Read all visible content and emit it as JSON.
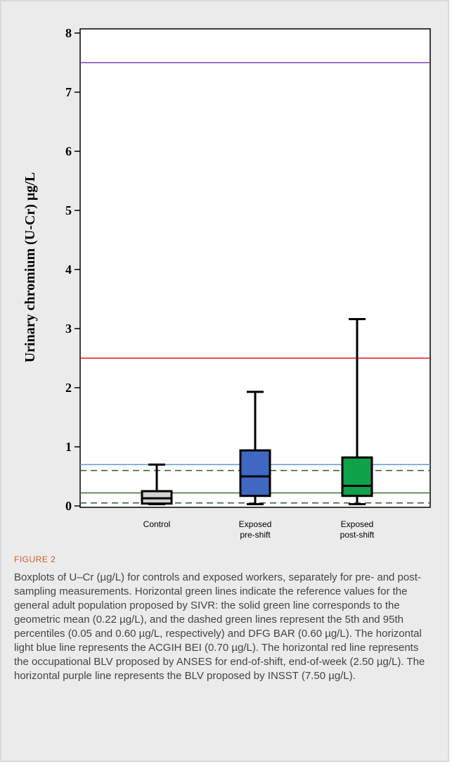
{
  "chart_data": {
    "type": "box",
    "ylabel": "Urinary chromium (U-Cr)  µg/L",
    "ylim": [
      0,
      8
    ],
    "yticks": [
      0,
      1,
      2,
      3,
      4,
      5,
      6,
      7,
      8
    ],
    "grid": false,
    "categories": [
      "Control",
      "Exposed\npre-shift",
      "Exposed\npost-shift"
    ],
    "boxes": [
      {
        "category": "Control",
        "min": 0.03,
        "q1": 0.04,
        "median": 0.13,
        "q3": 0.25,
        "max": 0.7,
        "fill": "#d2d2d2"
      },
      {
        "category": "Exposed\npre-shift",
        "min": 0.03,
        "q1": 0.17,
        "median": 0.5,
        "q3": 0.94,
        "max": 1.93,
        "fill": "#3f68c5"
      },
      {
        "category": "Exposed\npost-shift",
        "min": 0.03,
        "q1": 0.17,
        "median": 0.34,
        "q3": 0.82,
        "max": 3.16,
        "fill": "#0fa24a"
      }
    ],
    "reference_lines": [
      {
        "value": 7.5,
        "color": "#7b3fc0",
        "style": "solid"
      },
      {
        "value": 2.5,
        "color": "#e8141c",
        "style": "solid"
      },
      {
        "value": 0.7,
        "color": "#5f9ad8",
        "style": "solid"
      },
      {
        "value": 0.6,
        "color": "#2d5a2d",
        "style": "dashed"
      },
      {
        "value": 0.22,
        "color": "#3d6b2d",
        "style": "solid"
      },
      {
        "value": 0.05,
        "color": "#2d5a2d",
        "style": "dashed"
      }
    ]
  },
  "figure_label": "FIGURE 2",
  "caption": "Boxplots of U–Cr (µg/L) for controls and exposed workers, separately for pre- and post-sampling measurements. Horizontal green lines indicate the reference values for the general adult population proposed by SIVR: the solid green line corresponds to the geometric mean (0.22 µg/L), and the dashed green lines represent the 5th and 95th percentiles (0.05 and 0.60 µg/L, respectively) and DFG BAR (0.60 µg/L). The horizontal light blue line represents the ACGIH BEI (0.70 µg/L). The horizontal red line represents the occupational BLV proposed by ANSES for end-of-shift, end-of-week (2.50 µg/L). The horizontal purple line represents the BLV proposed by INSST (7.50 µg/L)."
}
